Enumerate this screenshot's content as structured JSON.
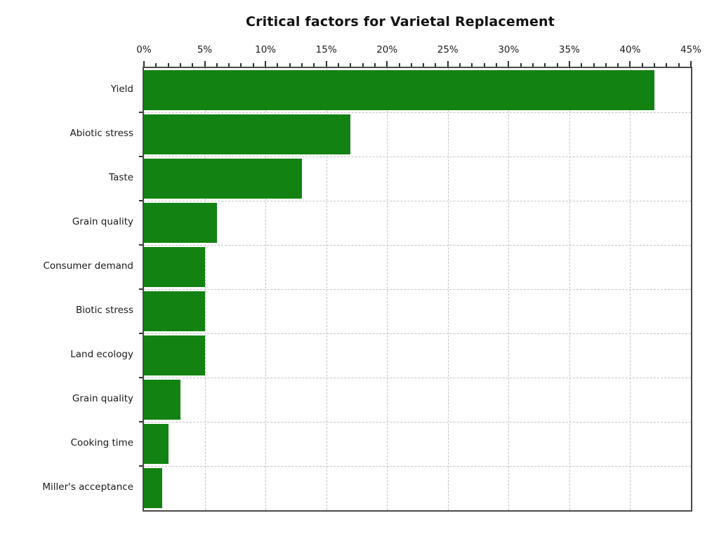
{
  "title": "Critical factors for Varietal Replacement",
  "chart_data": {
    "type": "bar",
    "orientation": "horizontal",
    "title": "Critical factors for Varietal Replacement",
    "categories": [
      "Yield",
      "Abiotic stress",
      "Taste",
      "Grain quality",
      "Consumer demand",
      "Biotic stress",
      "Land ecology",
      "Grain quality",
      "Cooking time",
      "Miller's acceptance"
    ],
    "values": [
      42,
      17,
      13,
      6,
      5,
      5,
      5,
      3,
      2,
      1.5
    ],
    "unit": "%",
    "xlabel": "",
    "ylabel": "",
    "xlim": [
      0,
      45
    ],
    "x_tick_values": [
      0,
      5,
      10,
      15,
      20,
      25,
      30,
      35,
      40,
      45
    ],
    "x_tick_labels": [
      "0%",
      "5%",
      "10%",
      "15%",
      "20%",
      "25%",
      "30%",
      "35%",
      "40%",
      "45%"
    ],
    "minor_tick_step": 1,
    "grid_style": "dashed",
    "axis_position": "top",
    "legend": "none",
    "colors": {
      "bar": "#128212",
      "axis": "#4a4a4a",
      "grid": "#c3c3c3",
      "text": "#1a1a1a",
      "background": "#ffffff"
    }
  }
}
